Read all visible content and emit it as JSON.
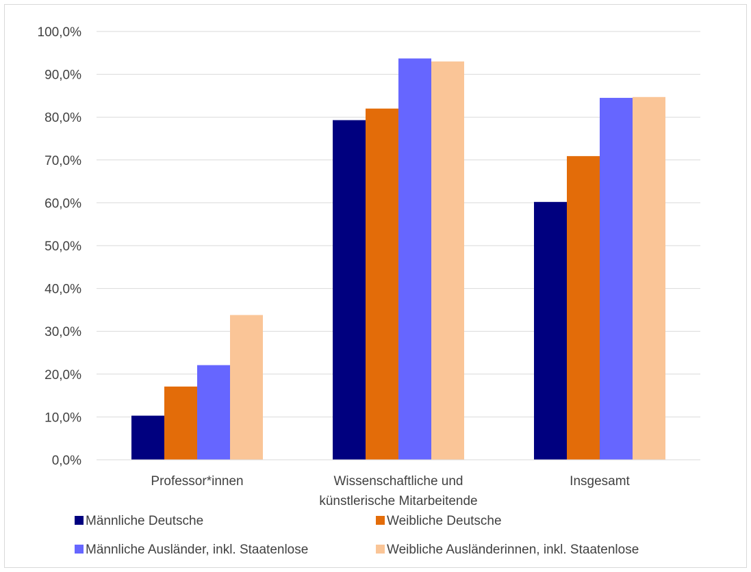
{
  "chart_data": {
    "type": "bar",
    "title": "",
    "xlabel": "",
    "ylabel": "",
    "ylim": [
      0,
      100
    ],
    "yticks": [
      "0,0%",
      "10,0%",
      "20,0%",
      "30,0%",
      "40,0%",
      "50,0%",
      "60,0%",
      "70,0%",
      "80,0%",
      "90,0%",
      "100,0%"
    ],
    "categories": [
      [
        "Professor*innen"
      ],
      [
        "Wissenschaftliche und",
        "künstlerische Mitarbeitende"
      ],
      [
        "Insgesamt"
      ]
    ],
    "series": [
      {
        "name": "Männliche Deutsche",
        "color": "#00007f",
        "values": [
          10.3,
          79.3,
          60.2
        ]
      },
      {
        "name": "Weibliche Deutsche",
        "color": "#e36c09",
        "values": [
          17.1,
          82.0,
          70.9
        ]
      },
      {
        "name": "Männliche Ausländer, inkl. Staatenlose",
        "color": "#6666ff",
        "values": [
          22.1,
          93.7,
          84.5
        ]
      },
      {
        "name": "Weibliche Ausländerinnen, inkl. Staatenlose",
        "color": "#fac597",
        "values": [
          33.8,
          93.0,
          84.7
        ]
      }
    ],
    "grid": true,
    "legend": "bottom",
    "gridColor": "#d9d9d9"
  }
}
